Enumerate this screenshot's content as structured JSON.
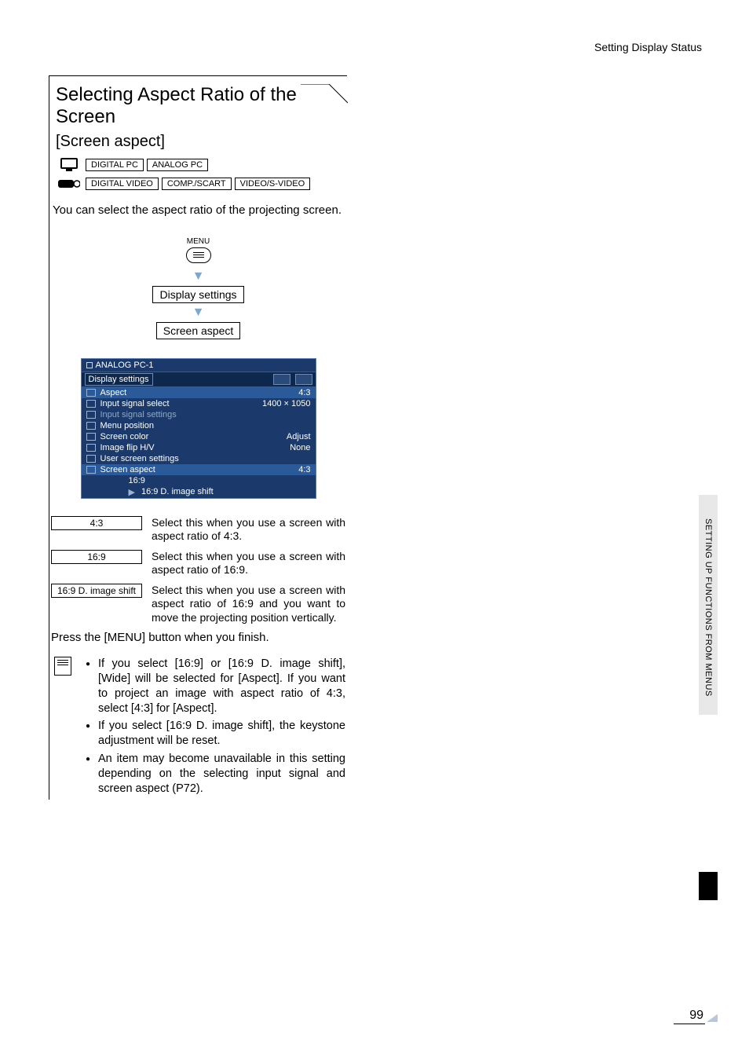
{
  "header": {
    "breadcrumb": "Setting Display Status"
  },
  "section": {
    "title": "Selecting Aspect Ratio of the Screen",
    "subtitle": "[Screen aspect]",
    "sources_row1": [
      "DIGITAL PC",
      "ANALOG PC"
    ],
    "sources_row2": [
      "DIGITAL VIDEO",
      "COMP./SCART",
      "VIDEO/S-VIDEO"
    ],
    "intro": "You can select the aspect ratio of the projecting screen."
  },
  "flow": {
    "menu_label": "MENU",
    "step1": "Display settings",
    "step2": "Screen aspect"
  },
  "menu_shot": {
    "top": "ANALOG PC-1",
    "tabs_label": "Display settings",
    "rows": [
      {
        "k": "Aspect",
        "v": "4:3",
        "hl": true
      },
      {
        "k": "Input signal select",
        "v": "1400 × 1050"
      },
      {
        "k": "Input signal settings",
        "v": "",
        "dim": true
      },
      {
        "k": "Menu position",
        "v": ""
      },
      {
        "k": "Screen color",
        "v": "Adjust"
      },
      {
        "k": "Image flip H/V",
        "v": "None"
      },
      {
        "k": "User screen settings",
        "v": ""
      },
      {
        "k": "Screen aspect",
        "v": "4:3",
        "hl": true
      }
    ],
    "sub": [
      "16:9",
      "16:9 D. image shift"
    ]
  },
  "options": [
    {
      "label": "4:3",
      "desc": "Select this when you use a screen with aspect ratio of 4:3."
    },
    {
      "label": "16:9",
      "desc": "Select this when you use a screen with aspect ratio of 16:9."
    },
    {
      "label": "16:9 D. image shift",
      "desc": "Select this when you use a screen with aspect ratio of 16:9 and you want to move the projecting position vertically."
    }
  ],
  "finish": "Press the [MENU] button when you finish.",
  "notes": [
    "If you select [16:9] or [16:9 D. image shift], [Wide] will be selected for [Aspect]. If you want to project an image with aspect ratio of 4:3, select [4:3] for [Aspect].",
    "If you select [16:9 D. image shift], the keystone adjustment will be reset.",
    "An item may become unavailable in this setting depending on the selecting input signal and screen aspect (P72)."
  ],
  "side": {
    "label": "SETTING UP FUNCTIONS FROM MENUS"
  },
  "page": {
    "num": "99"
  },
  "colors": {
    "menu_bg": "#1b3a6b",
    "menu_hl": "#2a5a9a",
    "side_tab": "#e8e8e8",
    "arrow": "#7aa8d4"
  }
}
